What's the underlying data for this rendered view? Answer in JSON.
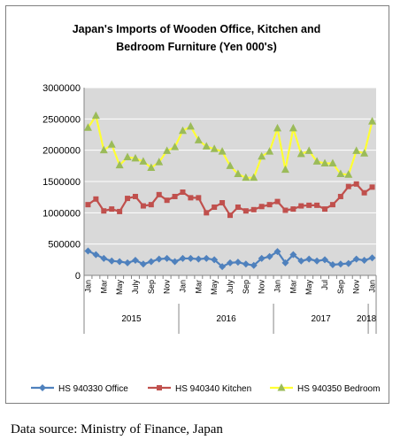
{
  "title_lines": [
    "Japan's Imports of  Wooden  Office, Kitchen and",
    "Bedroom Furniture (Yen 000's)"
  ],
  "source": "Data source: Ministry of Finance, Japan",
  "colors": {
    "office": "#4f81bd",
    "kitchen": "#c0504d",
    "bedroom": "#ffff33",
    "bedroom_marker": "#9bbb59",
    "plot_bg": "#d9d9d9",
    "grid": "#ffffff"
  },
  "chart_data": {
    "type": "line",
    "title": "Japan's Imports of  Wooden  Office, Kitchen and Bedroom Furniture (Yen 000's)",
    "ylim": [
      0,
      3000000
    ],
    "yticks": [
      "0",
      "500000",
      "1000000",
      "1500000",
      "2000000",
      "2500000",
      "3000000"
    ],
    "x": [
      "Jan 2015",
      "Feb 2015",
      "Mar 2015",
      "Apr 2015",
      "May 2015",
      "Jun 2015",
      "July 2015",
      "Aug 2015",
      "Sep 2015",
      "Oct 2015",
      "Nov 2015",
      "Dec 2015",
      "Jan 2016",
      "Feb 2016",
      "Mar 2016",
      "Apr 2016",
      "May 2016",
      "Jun 2016",
      "July 2016",
      "Aug 2016",
      "Sep 2016",
      "Oct 2016",
      "Nov 2016",
      "Dec 2016",
      "Jan 2017",
      "Feb 2017",
      "Mar 2017",
      "Apr 2017",
      "May 2017",
      "Jun 2017",
      "Jul 2017",
      "Aug 2017",
      "Sep 2017",
      "Oct 2017",
      "Nov 2017",
      "Dec 2017",
      "Jan 2018"
    ],
    "tick_labels": [
      "Jan",
      "",
      "Mar",
      "",
      "May",
      "",
      "July",
      "",
      "Sep",
      "",
      "Nov",
      "",
      "Jan",
      "",
      "Mar",
      "",
      "May",
      "",
      "July",
      "",
      "Sep",
      "",
      "Nov",
      "",
      "Jan",
      "",
      "Mar",
      "",
      "May",
      "",
      "Jul",
      "",
      "Sep",
      "",
      "Nov",
      "",
      "Jan"
    ],
    "year_labels": [
      {
        "label": "2015",
        "start": 0,
        "end": 11
      },
      {
        "label": "2016",
        "start": 12,
        "end": 23
      },
      {
        "label": "2017",
        "start": 24,
        "end": 35
      },
      {
        "label": "2018",
        "start": 36,
        "end": 36
      }
    ],
    "series": [
      {
        "name": "HS 940330 Office",
        "key": "office",
        "marker": "diamond",
        "values": [
          390000,
          330000,
          270000,
          230000,
          220000,
          200000,
          240000,
          180000,
          220000,
          260000,
          270000,
          220000,
          270000,
          270000,
          260000,
          270000,
          250000,
          140000,
          200000,
          210000,
          180000,
          160000,
          270000,
          300000,
          380000,
          200000,
          330000,
          230000,
          260000,
          230000,
          250000,
          170000,
          180000,
          190000,
          260000,
          240000,
          280000
        ]
      },
      {
        "name": "HS 940340 Kitchen",
        "key": "kitchen",
        "marker": "square",
        "values": [
          1130000,
          1220000,
          1030000,
          1060000,
          1020000,
          1230000,
          1260000,
          1110000,
          1130000,
          1290000,
          1200000,
          1260000,
          1330000,
          1240000,
          1240000,
          1000000,
          1090000,
          1160000,
          960000,
          1090000,
          1030000,
          1050000,
          1100000,
          1130000,
          1180000,
          1040000,
          1060000,
          1110000,
          1120000,
          1120000,
          1060000,
          1130000,
          1260000,
          1420000,
          1460000,
          1320000,
          1410000
        ]
      },
      {
        "name": "HS 940350 Bedroom",
        "key": "bedroom",
        "marker": "triangle",
        "values": [
          2360000,
          2550000,
          2000000,
          2090000,
          1760000,
          1890000,
          1870000,
          1820000,
          1720000,
          1810000,
          1990000,
          2050000,
          2310000,
          2380000,
          2160000,
          2060000,
          2020000,
          1980000,
          1750000,
          1620000,
          1560000,
          1560000,
          1900000,
          1980000,
          2350000,
          1690000,
          2350000,
          1940000,
          1990000,
          1820000,
          1790000,
          1790000,
          1620000,
          1610000,
          1990000,
          1950000,
          2460000
        ]
      }
    ]
  }
}
